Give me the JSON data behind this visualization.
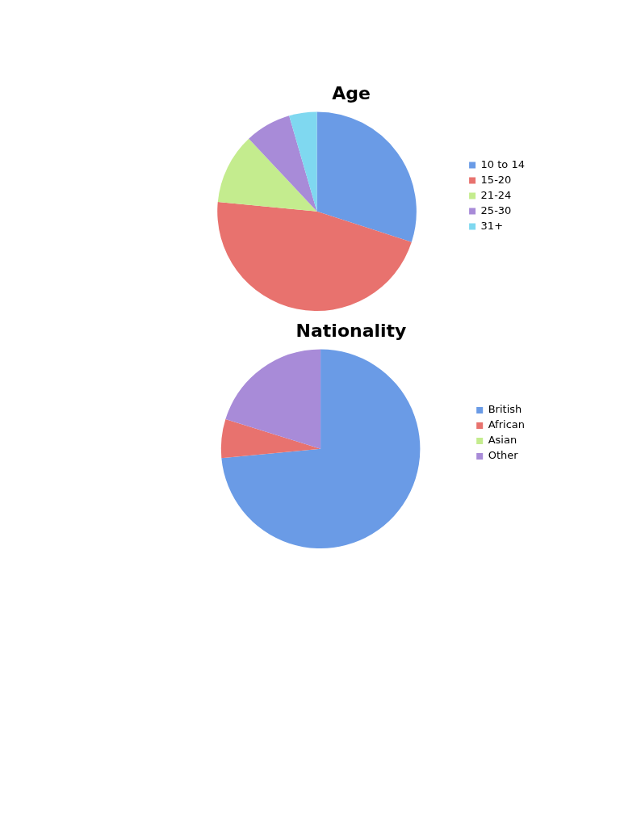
{
  "chart_data": [
    {
      "type": "pie",
      "title": "Age",
      "categories": [
        "10 to 14",
        "15-20",
        "21-24",
        "25-30",
        "31+"
      ],
      "values": [
        30,
        46.5,
        11.5,
        7.5,
        4.5
      ],
      "colors": [
        "#6a9be6",
        "#e8726e",
        "#c4ec8e",
        "#a88bd8",
        "#7fd8f0"
      ],
      "legend": "right"
    },
    {
      "type": "pie",
      "title": "Nationality",
      "categories": [
        "British",
        "African",
        "Asian",
        "Other"
      ],
      "values": [
        73.5,
        6.3,
        0,
        20.2
      ],
      "colors": [
        "#6a9be6",
        "#e8726e",
        "#c4ec8e",
        "#a88bd8"
      ],
      "legend": "right"
    }
  ]
}
